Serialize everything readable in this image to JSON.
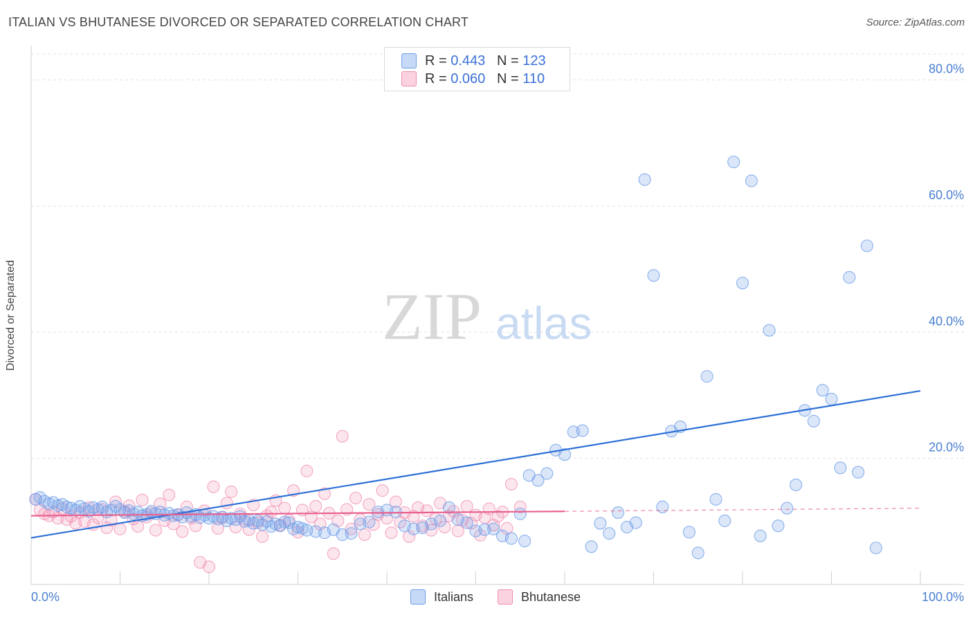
{
  "header": {
    "title": "ITALIAN VS BHUTANESE DIVORCED OR SEPARATED CORRELATION CHART",
    "source": "Source: ZipAtlas.com"
  },
  "legend": {
    "rows": [
      {
        "r_label": "R =",
        "r_value": "0.443",
        "n_label": "N =",
        "n_value": "123",
        "color": "#6f9fe8"
      },
      {
        "r_label": "R =",
        "r_value": "0.060",
        "n_label": "N =",
        "n_value": "110",
        "color": "#f08bb0"
      }
    ]
  },
  "bottom_legend": [
    {
      "label": "Italians",
      "color": "#6f9fe8"
    },
    {
      "label": "Bhutanese",
      "color": "#f08bb0"
    }
  ],
  "watermark": {
    "zip": "ZIP",
    "atlas": "atlas"
  },
  "colors": {
    "italians": "#6f9fe8",
    "italians_line": "#2c6fd6",
    "bhutanese": "#f08bb0",
    "bhutanese_line": "#e8608f",
    "axis_text": "#4a7fd0",
    "grid": "#e2e2e2"
  },
  "chart_data": {
    "type": "scatter",
    "title": "ITALIAN VS BHUTANESE DIVORCED OR SEPARATED CORRELATION CHART",
    "xlabel": "",
    "ylabel": "Divorced or Separated",
    "xlim": [
      0,
      100
    ],
    "ylim": [
      0,
      85
    ],
    "x_tick_labels": [
      "0.0%",
      "100.0%"
    ],
    "y_ticks": [
      20,
      40,
      60,
      80
    ],
    "y_tick_labels": [
      "20.0%",
      "40.0%",
      "60.0%",
      "80.0%"
    ],
    "grid": true,
    "legend_position": "top-center",
    "series": [
      {
        "name": "Italians",
        "trend": {
          "x": [
            0,
            100
          ],
          "y": [
            7.4,
            30.7
          ]
        },
        "points": [
          [
            0.5,
            13.5
          ],
          [
            1,
            13.8
          ],
          [
            1.5,
            13.2
          ],
          [
            2,
            12.8
          ],
          [
            2.5,
            13
          ],
          [
            3,
            12.5
          ],
          [
            3.5,
            12.7
          ],
          [
            4,
            12.3
          ],
          [
            4.5,
            12.1
          ],
          [
            5,
            11.8
          ],
          [
            5.5,
            12.4
          ],
          [
            6,
            12
          ],
          [
            6.5,
            11.6
          ],
          [
            7,
            12.2
          ],
          [
            7.5,
            11.9
          ],
          [
            8,
            12.3
          ],
          [
            8.5,
            11.5
          ],
          [
            9,
            11.8
          ],
          [
            9.5,
            12.4
          ],
          [
            10,
            11.9
          ],
          [
            10.5,
            11.4
          ],
          [
            11,
            11.7
          ],
          [
            11.5,
            11.2
          ],
          [
            12,
            11.5
          ],
          [
            12.5,
            10.9
          ],
          [
            13,
            11.1
          ],
          [
            13.5,
            11.6
          ],
          [
            14,
            11.2
          ],
          [
            14.5,
            11.5
          ],
          [
            15,
            11
          ],
          [
            15.5,
            11.3
          ],
          [
            16,
            10.9
          ],
          [
            16.5,
            11.1
          ],
          [
            17,
            10.7
          ],
          [
            17.5,
            11.4
          ],
          [
            18,
            10.8
          ],
          [
            18.5,
            11.1
          ],
          [
            19,
            10.6
          ],
          [
            19.5,
            11
          ],
          [
            20,
            10.5
          ],
          [
            20.5,
            10.8
          ],
          [
            21,
            10.4
          ],
          [
            21.5,
            10.7
          ],
          [
            22,
            10.1
          ],
          [
            22.5,
            10.5
          ],
          [
            23,
            10.3
          ],
          [
            23.5,
            10.8
          ],
          [
            24,
            10
          ],
          [
            24.5,
            10.2
          ],
          [
            25,
            9.7
          ],
          [
            25.5,
            10.1
          ],
          [
            26,
            9.5
          ],
          [
            26.5,
            10
          ],
          [
            27,
            9.2
          ],
          [
            27.5,
            9.6
          ],
          [
            28,
            9.3
          ],
          [
            28.5,
            9.9
          ],
          [
            29,
            9.8
          ],
          [
            29.5,
            8.8
          ],
          [
            30,
            9.1
          ],
          [
            30.5,
            8.9
          ],
          [
            31,
            8.6
          ],
          [
            32,
            8.4
          ],
          [
            33,
            8.2
          ],
          [
            34,
            8.7
          ],
          [
            35,
            7.9
          ],
          [
            36,
            8.1
          ],
          [
            37,
            9.6
          ],
          [
            38,
            9.9
          ],
          [
            39,
            11.5
          ],
          [
            40,
            11.8
          ],
          [
            41,
            11.5
          ],
          [
            42,
            9.3
          ],
          [
            43,
            8.8
          ],
          [
            44,
            9
          ],
          [
            45,
            9.6
          ],
          [
            46,
            10.1
          ],
          [
            47,
            12.2
          ],
          [
            48,
            10.3
          ],
          [
            49,
            9.8
          ],
          [
            50,
            8.5
          ],
          [
            51,
            8.7
          ],
          [
            52,
            8.8
          ],
          [
            53,
            7.7
          ],
          [
            54,
            7.3
          ],
          [
            55,
            11.2
          ],
          [
            55.5,
            6.9
          ],
          [
            56,
            17.3
          ],
          [
            57,
            16.5
          ],
          [
            58,
            17.6
          ],
          [
            59,
            21.3
          ],
          [
            60,
            20.6
          ],
          [
            61,
            24.2
          ],
          [
            62,
            24.4
          ],
          [
            63,
            6
          ],
          [
            64,
            9.7
          ],
          [
            65,
            8.1
          ],
          [
            66,
            11.4
          ],
          [
            67,
            9.1
          ],
          [
            68,
            9.8
          ],
          [
            69,
            64.2
          ],
          [
            70,
            49
          ],
          [
            71,
            12.3
          ],
          [
            72,
            24.3
          ],
          [
            73,
            25
          ],
          [
            74,
            8.3
          ],
          [
            75,
            5
          ],
          [
            76,
            33
          ],
          [
            77,
            13.5
          ],
          [
            78,
            10.1
          ],
          [
            79,
            67
          ],
          [
            80,
            47.8
          ],
          [
            81,
            64
          ],
          [
            82,
            7.7
          ],
          [
            83,
            40.3
          ],
          [
            84,
            9.3
          ],
          [
            85,
            12.1
          ],
          [
            86,
            15.8
          ],
          [
            87,
            27.6
          ],
          [
            88,
            25.9
          ],
          [
            89,
            30.8
          ],
          [
            90,
            29.4
          ],
          [
            91,
            18.5
          ],
          [
            92,
            48.7
          ],
          [
            93,
            17.8
          ],
          [
            94,
            53.7
          ],
          [
            95,
            5.8
          ]
        ]
      },
      {
        "name": "Bhutanese",
        "trend": {
          "x": [
            0,
            60
          ],
          "y": [
            10.9,
            11.6
          ]
        },
        "trend_extension": {
          "x": [
            60,
            100
          ],
          "y": [
            11.6,
            12.1
          ]
        },
        "points": [
          [
            0.5,
            13.5
          ],
          [
            1,
            11.8
          ],
          [
            1.5,
            11.2
          ],
          [
            2,
            10.9
          ],
          [
            2.5,
            11.5
          ],
          [
            3,
            10.5
          ],
          [
            3.5,
            12
          ],
          [
            4,
            10.3
          ],
          [
            4.5,
            10.8
          ],
          [
            5,
            9.7
          ],
          [
            5.5,
            11.4
          ],
          [
            6,
            10
          ],
          [
            6.5,
            12.2
          ],
          [
            7,
            9.5
          ],
          [
            7.5,
            10.6
          ],
          [
            8,
            11.9
          ],
          [
            8.5,
            9
          ],
          [
            9,
            10.2
          ],
          [
            9.5,
            13.1
          ],
          [
            10,
            8.8
          ],
          [
            10.5,
            11.6
          ],
          [
            11,
            12.5
          ],
          [
            11.5,
            10.4
          ],
          [
            12,
            9.2
          ],
          [
            12.5,
            13.4
          ],
          [
            13,
            10.7
          ],
          [
            13.5,
            11.3
          ],
          [
            14,
            8.6
          ],
          [
            14.5,
            12.8
          ],
          [
            15,
            10.1
          ],
          [
            15.5,
            14.2
          ],
          [
            16,
            9.6
          ],
          [
            16.5,
            11
          ],
          [
            17,
            8.4
          ],
          [
            17.5,
            12.3
          ],
          [
            18,
            10.5
          ],
          [
            18.5,
            9.3
          ],
          [
            19,
            3.5
          ],
          [
            19.5,
            11.7
          ],
          [
            20,
            2.8
          ],
          [
            20.5,
            15.5
          ],
          [
            21,
            8.9
          ],
          [
            21.5,
            10.6
          ],
          [
            22,
            12.9
          ],
          [
            22.5,
            14.7
          ],
          [
            23,
            9.1
          ],
          [
            23.5,
            11.2
          ],
          [
            24,
            10.4
          ],
          [
            24.5,
            8.7
          ],
          [
            25,
            12.6
          ],
          [
            25.5,
            9.8
          ],
          [
            26,
            7.6
          ],
          [
            26.5,
            10.9
          ],
          [
            27,
            11.5
          ],
          [
            27.5,
            13.3
          ],
          [
            28,
            9.4
          ],
          [
            28.5,
            12.1
          ],
          [
            29,
            10.2
          ],
          [
            29.5,
            14.9
          ],
          [
            30,
            8.3
          ],
          [
            30.5,
            11.8
          ],
          [
            31,
            18
          ],
          [
            31.5,
            10.7
          ],
          [
            32,
            12.4
          ],
          [
            32.5,
            9.6
          ],
          [
            33,
            14.4
          ],
          [
            33.5,
            11.3
          ],
          [
            34,
            4.9
          ],
          [
            34.5,
            10.1
          ],
          [
            35,
            23.5
          ],
          [
            35.5,
            11.9
          ],
          [
            36,
            8.8
          ],
          [
            36.5,
            13.7
          ],
          [
            37,
            10.3
          ],
          [
            37.5,
            7.9
          ],
          [
            38,
            12.7
          ],
          [
            38.5,
            9.5
          ],
          [
            39,
            11.1
          ],
          [
            39.5,
            14.9
          ],
          [
            40,
            10.5
          ],
          [
            40.5,
            8.2
          ],
          [
            41,
            13.1
          ],
          [
            41.5,
            9.9
          ],
          [
            42,
            11.4
          ],
          [
            42.5,
            7.6
          ],
          [
            43,
            10.8
          ],
          [
            43.5,
            12.2
          ],
          [
            44,
            9.3
          ],
          [
            44.5,
            11.7
          ],
          [
            45,
            8.6
          ],
          [
            45.5,
            10.4
          ],
          [
            46,
            12.9
          ],
          [
            46.5,
            9.1
          ],
          [
            47,
            10.9
          ],
          [
            47.5,
            11.6
          ],
          [
            48,
            8.5
          ],
          [
            48.5,
            10.2
          ],
          [
            49,
            12.4
          ],
          [
            49.5,
            9.7
          ],
          [
            50,
            11
          ],
          [
            50.5,
            7.8
          ],
          [
            51,
            10.6
          ],
          [
            51.5,
            12
          ],
          [
            52,
            9.4
          ],
          [
            52.5,
            10.8
          ],
          [
            53,
            11.5
          ],
          [
            53.5,
            8.9
          ],
          [
            54,
            15.9
          ],
          [
            55,
            12.3
          ]
        ]
      }
    ]
  }
}
